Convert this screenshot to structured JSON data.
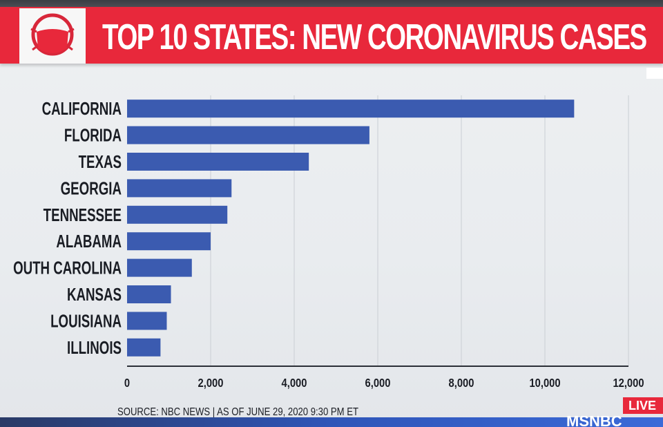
{
  "banner": {
    "title": "TOP 10 STATES: NEW CORONAVIRUS CASES",
    "logo_icon": "face-mask-icon",
    "background": "#e8283b"
  },
  "chart_data": {
    "type": "bar",
    "orientation": "horizontal",
    "title": "TOP 10 STATES: NEW CORONAVIRUS CASES",
    "categories": [
      "CALIFORNIA",
      "FLORIDA",
      "TEXAS",
      "GEORGIA",
      "TENNESSEE",
      "ALABAMA",
      "OUTH CAROLINA",
      "KANSAS",
      "LOUISIANA",
      "ILLINOIS"
    ],
    "values": [
      10700,
      5800,
      4350,
      2500,
      2400,
      2000,
      1550,
      1050,
      950,
      800
    ],
    "xlim": [
      0,
      12000
    ],
    "xticks": [
      0,
      2000,
      4000,
      6000,
      8000,
      10000,
      12000
    ],
    "xtick_labels": [
      "0",
      "2,000",
      "4,000",
      "6,000",
      "8,000",
      "10,000",
      "12,000"
    ],
    "bar_color": "#3b5bb0",
    "grid": true,
    "legend": "none"
  },
  "footer": {
    "source": "SOURCE: NBC NEWS | AS OF JUNE 29, 2020 9:30 PM ET",
    "live_label": "LIVE",
    "network": "MSNBC"
  }
}
